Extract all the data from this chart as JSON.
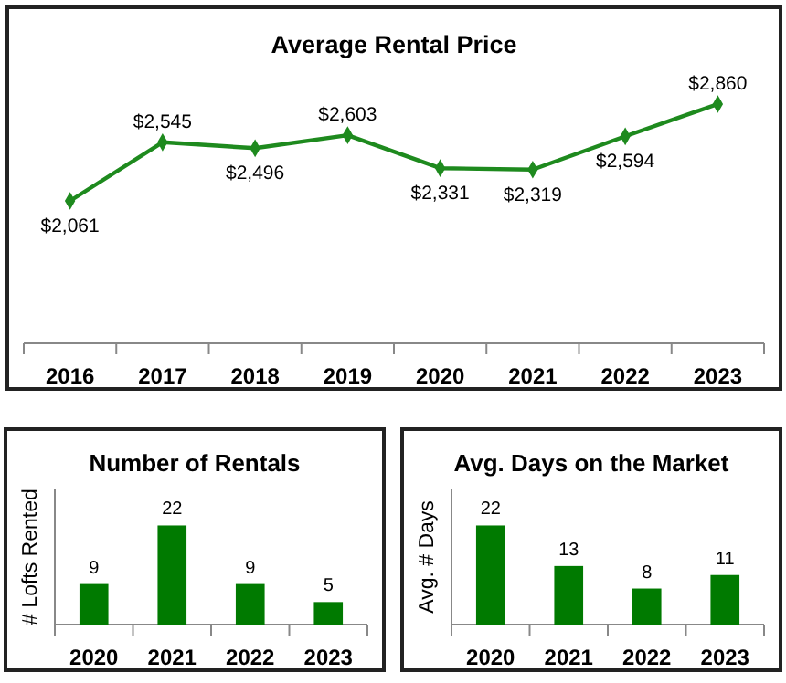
{
  "chart_data": [
    {
      "type": "line",
      "title": "Average Rental Price",
      "categories": [
        "2016",
        "2017",
        "2018",
        "2019",
        "2020",
        "2021",
        "2022",
        "2023"
      ],
      "series": [
        {
          "color": "#1e8a1e",
          "values": [
            2061,
            2545,
            2496,
            2603,
            2331,
            2319,
            2594,
            2860
          ],
          "value_labels": [
            "$2,061",
            "$2,545",
            "$2,496",
            "$2,603",
            "$2,331",
            "$2,319",
            "$2,594",
            "$2,860"
          ]
        }
      ],
      "tick_labels": "x",
      "marker": "diamond"
    },
    {
      "type": "bar",
      "title": "Number of Rentals",
      "ylabel": "# Lofts Rented",
      "categories": [
        "2020",
        "2021",
        "2022",
        "2023"
      ],
      "values": [
        9,
        22,
        9,
        5
      ],
      "color": "#007a00",
      "ylim": [
        0,
        30
      ],
      "tick_labels": "x",
      "data_labels": true
    },
    {
      "type": "bar",
      "title": "Avg. Days on the Market",
      "ylabel": "Avg. # Days",
      "categories": [
        "2020",
        "2021",
        "2022",
        "2023"
      ],
      "values": [
        22,
        13,
        8,
        11
      ],
      "color": "#007a00",
      "ylim": [
        0,
        30
      ],
      "tick_labels": "x",
      "data_labels": true
    }
  ]
}
